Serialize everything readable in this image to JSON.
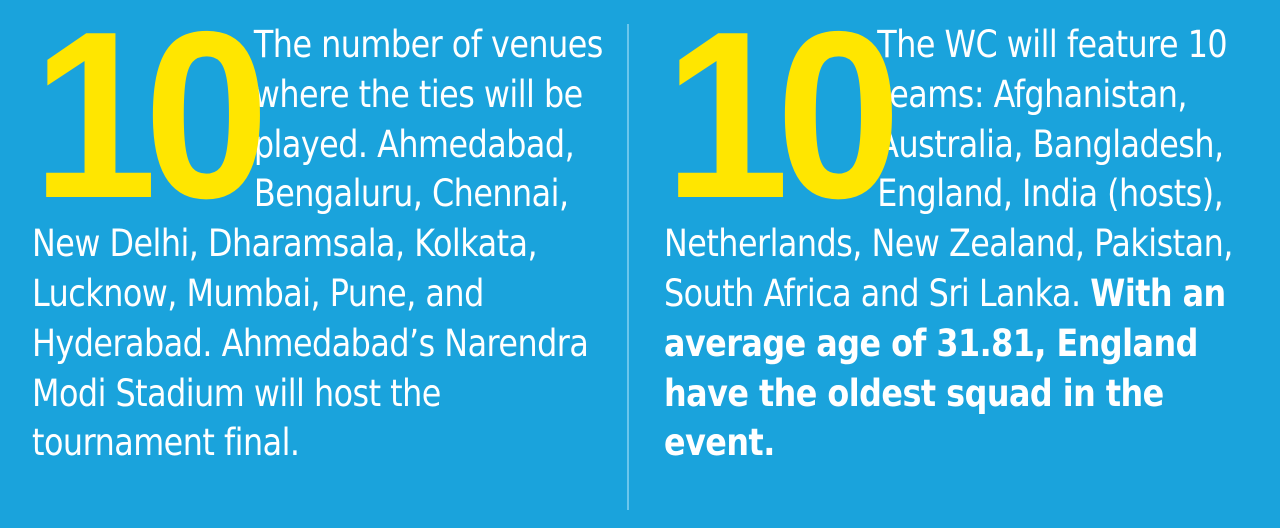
{
  "left": {
    "number": "10",
    "text": "The number of venues where the ties will be played. Ahmedabad, Bengaluru, Chennai, New Delhi, Dharamsala, Kolkata, Lucknow, Mumbai, Pune, and Hyderabad. Ahmedabad’s Narendra Modi Stadium will host the tournament final."
  },
  "right": {
    "number": "10",
    "text": "The WC will feature 10 teams: Afghanistan, Australia, Bangladesh, England, India (hosts), Netherlands, New Zealand, Pakistan, South Africa and Sri Lanka.",
    "bold_text": "With an average age of 31.81, England have the oldest squad in the event."
  },
  "colors": {
    "background": "#1aa3dc",
    "number": "#ffe600",
    "text": "#ffffff"
  }
}
